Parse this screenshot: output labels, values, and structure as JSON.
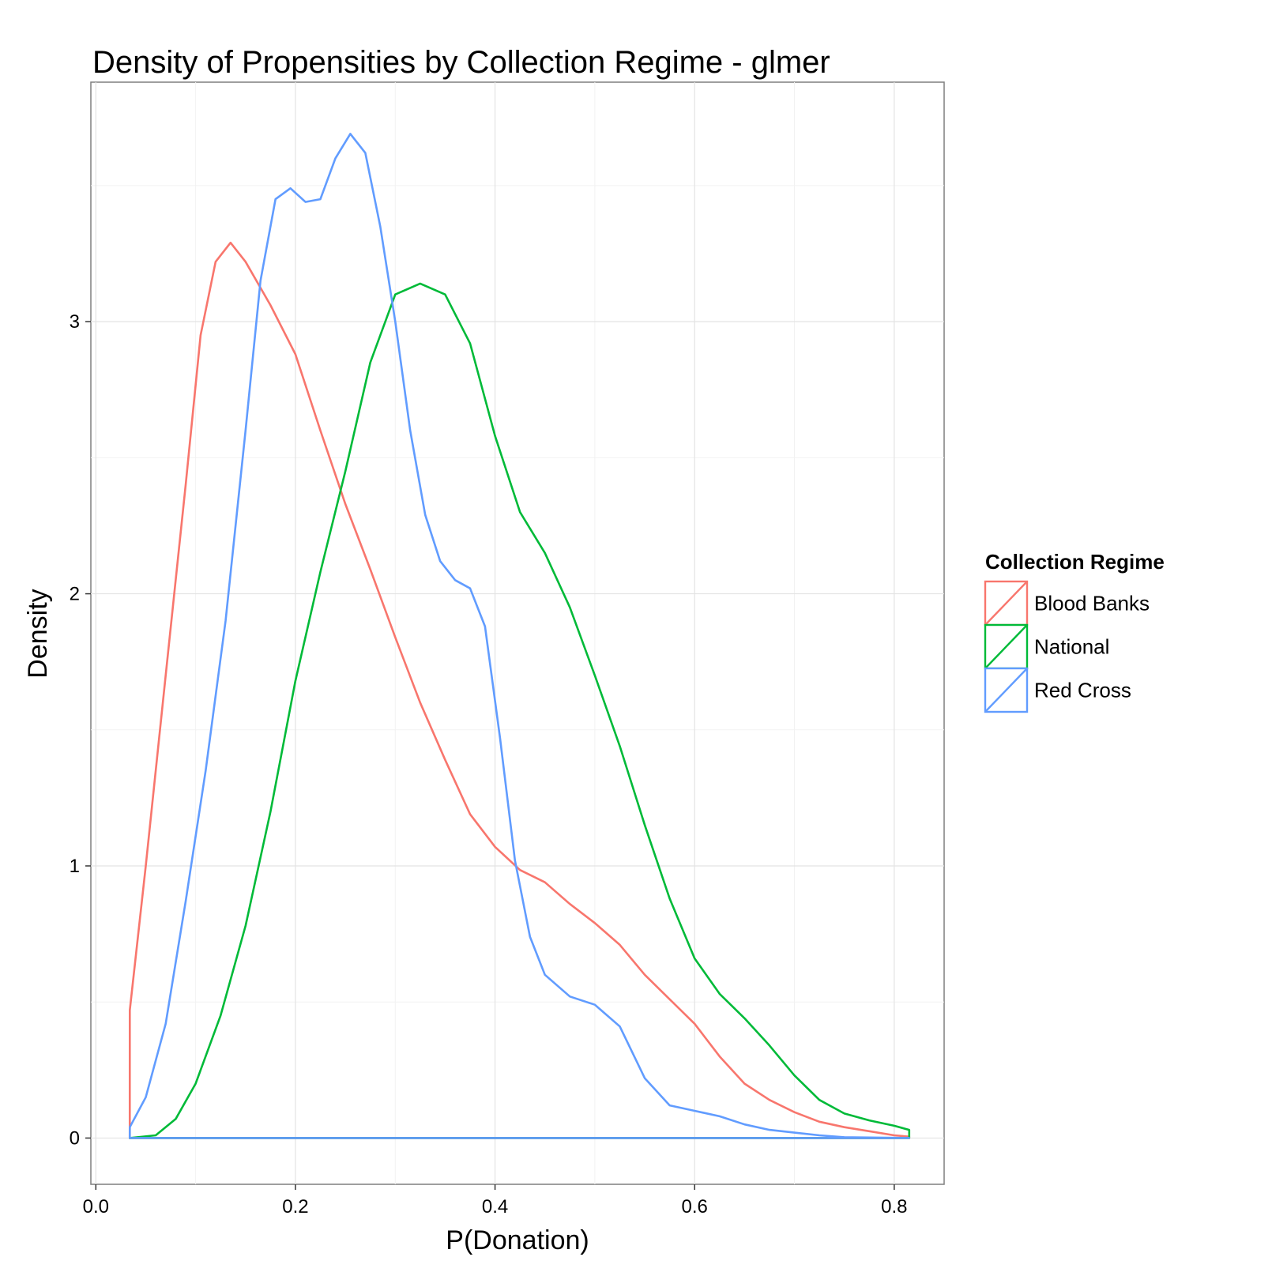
{
  "chart_data": {
    "type": "line",
    "title": "Density of Propensities by Collection Regime - glmer",
    "xlabel": "P(Donation)",
    "ylabel": "Density",
    "xlim": [
      -0.005,
      0.85
    ],
    "ylim": [
      -0.17,
      3.88
    ],
    "x_ticks": [
      0.0,
      0.2,
      0.4,
      0.6,
      0.8
    ],
    "x_tick_labels": [
      "0.0",
      "0.2",
      "0.4",
      "0.6",
      "0.8"
    ],
    "y_ticks": [
      0,
      1,
      2,
      3
    ],
    "y_tick_labels": [
      "0",
      "1",
      "2",
      "3"
    ],
    "grid": true,
    "legend": {
      "title": "Collection Regime",
      "position": "right",
      "entries": [
        "Blood Banks",
        "National",
        "Red Cross"
      ]
    },
    "series": [
      {
        "name": "Blood Banks",
        "color": "#F8766D",
        "points": [
          [
            0.034,
            0.47
          ],
          [
            0.05,
            1.0
          ],
          [
            0.07,
            1.7
          ],
          [
            0.09,
            2.4
          ],
          [
            0.105,
            2.95
          ],
          [
            0.12,
            3.22
          ],
          [
            0.135,
            3.29
          ],
          [
            0.15,
            3.22
          ],
          [
            0.175,
            3.06
          ],
          [
            0.2,
            2.88
          ],
          [
            0.225,
            2.6
          ],
          [
            0.25,
            2.33
          ],
          [
            0.275,
            2.09
          ],
          [
            0.3,
            1.84
          ],
          [
            0.325,
            1.6
          ],
          [
            0.35,
            1.39
          ],
          [
            0.375,
            1.19
          ],
          [
            0.4,
            1.07
          ],
          [
            0.425,
            0.985
          ],
          [
            0.45,
            0.94
          ],
          [
            0.475,
            0.86
          ],
          [
            0.5,
            0.79
          ],
          [
            0.525,
            0.71
          ],
          [
            0.55,
            0.6
          ],
          [
            0.575,
            0.51
          ],
          [
            0.6,
            0.42
          ],
          [
            0.625,
            0.3
          ],
          [
            0.65,
            0.2
          ],
          [
            0.675,
            0.14
          ],
          [
            0.7,
            0.095
          ],
          [
            0.725,
            0.06
          ],
          [
            0.75,
            0.04
          ],
          [
            0.775,
            0.025
          ],
          [
            0.8,
            0.01
          ],
          [
            0.815,
            0.005
          ]
        ]
      },
      {
        "name": "National",
        "color": "#00BA38",
        "points": [
          [
            0.034,
            0.0
          ],
          [
            0.06,
            0.01
          ],
          [
            0.08,
            0.07
          ],
          [
            0.1,
            0.2
          ],
          [
            0.125,
            0.45
          ],
          [
            0.15,
            0.78
          ],
          [
            0.175,
            1.2
          ],
          [
            0.2,
            1.68
          ],
          [
            0.225,
            2.08
          ],
          [
            0.25,
            2.45
          ],
          [
            0.275,
            2.85
          ],
          [
            0.3,
            3.1
          ],
          [
            0.325,
            3.14
          ],
          [
            0.35,
            3.1
          ],
          [
            0.375,
            2.92
          ],
          [
            0.4,
            2.58
          ],
          [
            0.425,
            2.3
          ],
          [
            0.45,
            2.15
          ],
          [
            0.475,
            1.95
          ],
          [
            0.5,
            1.7
          ],
          [
            0.525,
            1.44
          ],
          [
            0.55,
            1.15
          ],
          [
            0.575,
            0.88
          ],
          [
            0.6,
            0.66
          ],
          [
            0.625,
            0.53
          ],
          [
            0.65,
            0.44
          ],
          [
            0.675,
            0.34
          ],
          [
            0.7,
            0.23
          ],
          [
            0.725,
            0.14
          ],
          [
            0.75,
            0.09
          ],
          [
            0.775,
            0.065
          ],
          [
            0.8,
            0.045
          ],
          [
            0.815,
            0.03
          ]
        ]
      },
      {
        "name": "Red Cross",
        "color": "#619CFF",
        "points": [
          [
            0.034,
            0.04
          ],
          [
            0.05,
            0.15
          ],
          [
            0.07,
            0.42
          ],
          [
            0.09,
            0.87
          ],
          [
            0.11,
            1.35
          ],
          [
            0.13,
            1.9
          ],
          [
            0.15,
            2.6
          ],
          [
            0.165,
            3.15
          ],
          [
            0.18,
            3.45
          ],
          [
            0.195,
            3.49
          ],
          [
            0.21,
            3.44
          ],
          [
            0.225,
            3.45
          ],
          [
            0.24,
            3.6
          ],
          [
            0.255,
            3.69
          ],
          [
            0.27,
            3.62
          ],
          [
            0.285,
            3.35
          ],
          [
            0.3,
            3.0
          ],
          [
            0.315,
            2.6
          ],
          [
            0.33,
            2.29
          ],
          [
            0.345,
            2.12
          ],
          [
            0.36,
            2.05
          ],
          [
            0.375,
            2.02
          ],
          [
            0.39,
            1.88
          ],
          [
            0.405,
            1.47
          ],
          [
            0.42,
            1.02
          ],
          [
            0.435,
            0.74
          ],
          [
            0.45,
            0.6
          ],
          [
            0.475,
            0.52
          ],
          [
            0.5,
            0.49
          ],
          [
            0.525,
            0.41
          ],
          [
            0.55,
            0.22
          ],
          [
            0.575,
            0.12
          ],
          [
            0.6,
            0.1
          ],
          [
            0.625,
            0.08
          ],
          [
            0.65,
            0.05
          ],
          [
            0.675,
            0.03
          ],
          [
            0.7,
            0.02
          ],
          [
            0.725,
            0.01
          ],
          [
            0.75,
            0.003
          ],
          [
            0.815,
            0.0
          ]
        ]
      }
    ]
  }
}
